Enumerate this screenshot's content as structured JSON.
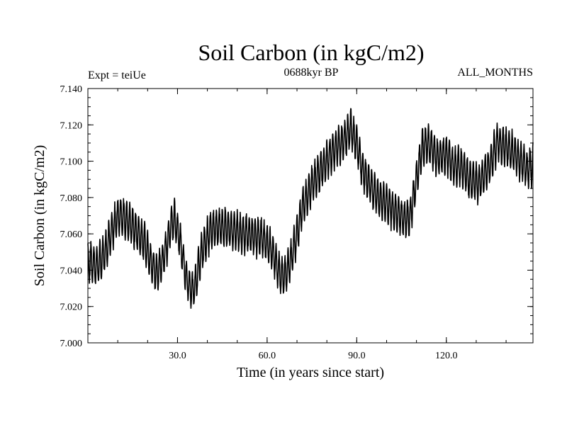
{
  "header": {
    "title": "Soil Carbon (in kgC/m2)",
    "experiment": "Expt = teiUe",
    "subtitle": "0688kyr BP",
    "months": "ALL_MONTHS"
  },
  "chart_data": {
    "type": "line",
    "title": "Soil Carbon (in kgC/m2)",
    "xlabel": "Time (in years since start)",
    "ylabel": "Soil Carbon (in kgC/m2)",
    "xlim": [
      0,
      149
    ],
    "ylim": [
      7.0,
      7.14
    ],
    "x_ticks": [
      30,
      60,
      90,
      120
    ],
    "x_tick_labels": [
      "30.0",
      "60.0",
      "90.0",
      "120.0"
    ],
    "y_ticks": [
      7.0,
      7.02,
      7.04,
      7.06,
      7.08,
      7.1,
      7.12,
      7.14
    ],
    "y_tick_labels": [
      "7.000",
      "7.020",
      "7.040",
      "7.060",
      "7.080",
      "7.100",
      "7.120",
      "7.140"
    ],
    "grid": false,
    "seasonal_amplitude": 0.01,
    "series": [
      {
        "name": "Soil Carbon",
        "sampling": "monthly",
        "x": [
          0,
          3,
          6,
          8,
          10,
          13,
          16,
          19,
          21,
          23,
          25,
          27,
          28,
          29,
          31,
          33,
          35,
          36,
          38,
          41,
          44,
          47,
          50,
          53,
          56,
          59,
          62,
          64,
          66,
          68,
          70,
          72,
          75,
          78,
          80,
          83,
          86,
          88,
          90,
          92,
          95,
          98,
          100,
          103,
          106,
          108,
          110,
          112,
          114,
          117,
          120,
          122,
          125,
          128,
          131,
          133,
          135,
          137,
          140,
          142,
          145,
          147,
          149
        ],
        "y": [
          7.045,
          7.042,
          7.05,
          7.062,
          7.07,
          7.068,
          7.062,
          7.055,
          7.045,
          7.038,
          7.045,
          7.058,
          7.066,
          7.068,
          7.055,
          7.035,
          7.028,
          7.032,
          7.05,
          7.062,
          7.064,
          7.063,
          7.061,
          7.06,
          7.059,
          7.057,
          7.05,
          7.038,
          7.037,
          7.045,
          7.06,
          7.075,
          7.087,
          7.095,
          7.1,
          7.108,
          7.112,
          7.118,
          7.11,
          7.095,
          7.085,
          7.078,
          7.077,
          7.072,
          7.068,
          7.07,
          7.09,
          7.108,
          7.11,
          7.102,
          7.104,
          7.098,
          7.097,
          7.09,
          7.088,
          7.093,
          7.1,
          7.11,
          7.108,
          7.105,
          7.1,
          7.096,
          7.098
        ]
      }
    ]
  }
}
